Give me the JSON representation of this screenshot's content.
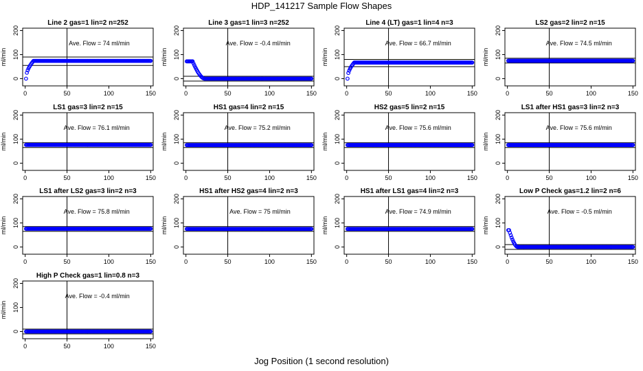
{
  "figure": {
    "title": "HDP_141217  Sample Flow Shapes",
    "xlabel": "Jog Position (1 second resolution)"
  },
  "style": {
    "point_color": "#0000ff",
    "axis_color": "#000000"
  },
  "chart_data": [
    {
      "type": "scatter",
      "title": "Line 2 gas=1 lin=2 n=252",
      "annotation": "Ave. Flow = 74  ml/min",
      "ylabel": "ml/min",
      "xlim": [
        0,
        150
      ],
      "ylim": [
        -30,
        210
      ],
      "xticks": [
        0,
        50,
        100,
        150
      ],
      "yticks": [
        0,
        100,
        200
      ],
      "ytick_labels": [
        "0",
        "100",
        "200"
      ],
      "vline_x": 50,
      "hlines": [
        55,
        90
      ],
      "shape": {
        "kind": "rise",
        "plateau": 74,
        "start": 0,
        "settle": 9
      }
    },
    {
      "type": "scatter",
      "title": "Line 3 gas=1 lin=3 n=252",
      "annotation": "Ave. Flow = -0.4  ml/min",
      "ylabel": "ml/min",
      "xlim": [
        0,
        150
      ],
      "ylim": [
        -30,
        210
      ],
      "xticks": [
        0,
        50,
        100,
        150
      ],
      "yticks": [
        0,
        100,
        200
      ],
      "ytick_labels": [
        "0",
        "100",
        "200"
      ],
      "vline_x": 50,
      "hlines": [
        -10,
        10
      ],
      "shape": {
        "kind": "fall",
        "plateau": 0,
        "start": 72,
        "hold": 8,
        "settle": 22
      }
    },
    {
      "type": "scatter",
      "title": "Line 4 (LT) gas=1 lin=4 n=3",
      "annotation": "Ave. Flow = 66.7  ml/min",
      "ylabel": "ml/min",
      "xlim": [
        0,
        150
      ],
      "ylim": [
        -30,
        210
      ],
      "xticks": [
        0,
        50,
        100,
        150
      ],
      "yticks": [
        0,
        100,
        200
      ],
      "ytick_labels": [
        "0",
        "100",
        "200"
      ],
      "vline_x": 50,
      "hlines": [
        50,
        80
      ],
      "shape": {
        "kind": "rise",
        "plateau": 67,
        "start": 0,
        "settle": 8
      }
    },
    {
      "type": "scatter",
      "title": "LS2 gas=2 lin=2 n=15",
      "annotation": "Ave. Flow = 74.5  ml/min",
      "ylabel": "ml/min",
      "xlim": [
        0,
        150
      ],
      "ylim": [
        -30,
        210
      ],
      "xticks": [
        0,
        50,
        100,
        150
      ],
      "yticks": [
        0,
        100,
        200
      ],
      "ytick_labels": [
        "0",
        "100",
        "200"
      ],
      "vline_x": 50,
      "hlines": [
        65,
        85
      ],
      "shape": {
        "kind": "flat",
        "plateau": 74.5
      }
    },
    {
      "type": "scatter",
      "title": "LS1 gas=3 lin=2 n=15",
      "annotation": "Ave. Flow = 76.1  ml/min",
      "ylabel": "ml/min",
      "xlim": [
        0,
        150
      ],
      "ylim": [
        -30,
        210
      ],
      "xticks": [
        0,
        50,
        100,
        150
      ],
      "yticks": [
        0,
        100,
        200
      ],
      "ytick_labels": [
        "0",
        "100",
        "200"
      ],
      "vline_x": 50,
      "hlines": [
        65,
        85
      ],
      "shape": {
        "kind": "flat",
        "plateau": 76.1
      }
    },
    {
      "type": "scatter",
      "title": "HS1 gas=4 lin=2 n=15",
      "annotation": "Ave. Flow = 75.2  ml/min",
      "ylabel": "ml/min",
      "xlim": [
        0,
        150
      ],
      "ylim": [
        -30,
        210
      ],
      "xticks": [
        0,
        50,
        100,
        150
      ],
      "yticks": [
        0,
        100,
        200
      ],
      "ytick_labels": [
        "0",
        "100",
        "200"
      ],
      "vline_x": 50,
      "hlines": [
        65,
        85
      ],
      "shape": {
        "kind": "flat",
        "plateau": 75.2
      }
    },
    {
      "type": "scatter",
      "title": "HS2 gas=5 lin=2 n=15",
      "annotation": "Ave. Flow = 75.6  ml/min",
      "ylabel": "ml/min",
      "xlim": [
        0,
        150
      ],
      "ylim": [
        -30,
        210
      ],
      "xticks": [
        0,
        50,
        100,
        150
      ],
      "yticks": [
        0,
        100,
        200
      ],
      "ytick_labels": [
        "0",
        "100",
        "200"
      ],
      "vline_x": 50,
      "hlines": [
        65,
        85
      ],
      "shape": {
        "kind": "flat",
        "plateau": 75.6
      }
    },
    {
      "type": "scatter",
      "title": "LS1 after HS1 gas=3 lin=2 n=3",
      "annotation": "Ave. Flow = 75.6  ml/min",
      "ylabel": "ml/min",
      "xlim": [
        0,
        150
      ],
      "ylim": [
        -30,
        210
      ],
      "xticks": [
        0,
        50,
        100,
        150
      ],
      "yticks": [
        0,
        100,
        200
      ],
      "ytick_labels": [
        "0",
        "100",
        "200"
      ],
      "vline_x": 50,
      "hlines": [
        65,
        85
      ],
      "shape": {
        "kind": "flat",
        "plateau": 75.6
      }
    },
    {
      "type": "scatter",
      "title": "LS1 after LS2 gas=3 lin=2 n=3",
      "annotation": "Ave. Flow = 75.8  ml/min",
      "ylabel": "ml/min",
      "xlim": [
        0,
        150
      ],
      "ylim": [
        -30,
        210
      ],
      "xticks": [
        0,
        50,
        100,
        150
      ],
      "yticks": [
        0,
        100,
        200
      ],
      "ytick_labels": [
        "0",
        "100",
        "200"
      ],
      "vline_x": 50,
      "hlines": [
        65,
        85
      ],
      "shape": {
        "kind": "flat",
        "plateau": 75.8
      }
    },
    {
      "type": "scatter",
      "title": "HS1 after HS2 gas=4 lin=2 n=3",
      "annotation": "Ave. Flow = 75  ml/min",
      "ylabel": "ml/min",
      "xlim": [
        0,
        150
      ],
      "ylim": [
        -30,
        210
      ],
      "xticks": [
        0,
        50,
        100,
        150
      ],
      "yticks": [
        0,
        100,
        200
      ],
      "ytick_labels": [
        "0",
        "100",
        "200"
      ],
      "vline_x": 50,
      "hlines": [
        65,
        85
      ],
      "shape": {
        "kind": "flat",
        "plateau": 75
      }
    },
    {
      "type": "scatter",
      "title": "HS1 after LS1 gas=4 lin=2 n=3",
      "annotation": "Ave. Flow = 74.9  ml/min",
      "ylabel": "ml/min",
      "xlim": [
        0,
        150
      ],
      "ylim": [
        -30,
        210
      ],
      "xticks": [
        0,
        50,
        100,
        150
      ],
      "yticks": [
        0,
        100,
        200
      ],
      "ytick_labels": [
        "0",
        "100",
        "200"
      ],
      "vline_x": 50,
      "hlines": [
        65,
        85
      ],
      "shape": {
        "kind": "flat",
        "plateau": 74.9
      }
    },
    {
      "type": "scatter",
      "title": "Low P Check gas=1.2 lin=2 n=6",
      "annotation": "Ave. Flow = -0.5  ml/min",
      "ylabel": "ml/min",
      "xlim": [
        0,
        150
      ],
      "ylim": [
        -30,
        210
      ],
      "xticks": [
        0,
        50,
        100,
        150
      ],
      "yticks": [
        0,
        100,
        200
      ],
      "ytick_labels": [
        "0",
        "100",
        "200"
      ],
      "vline_x": 50,
      "hlines": [
        -10,
        10
      ],
      "shape": {
        "kind": "fall",
        "plateau": 0,
        "start": 70,
        "hold": 2,
        "settle": 12
      }
    },
    {
      "type": "scatter",
      "title": "High P Check gas=1 lin=0.8 n=3",
      "annotation": "Ave. Flow = -0.4  ml/min",
      "ylabel": "ml/min",
      "xlim": [
        0,
        150
      ],
      "ylim": [
        -30,
        210
      ],
      "xticks": [
        0,
        50,
        100,
        150
      ],
      "yticks": [
        0,
        100,
        200
      ],
      "ytick_labels": [
        "0",
        "100",
        "200"
      ],
      "vline_x": 50,
      "hlines": [
        -10,
        10
      ],
      "shape": {
        "kind": "flat",
        "plateau": 0
      }
    }
  ]
}
